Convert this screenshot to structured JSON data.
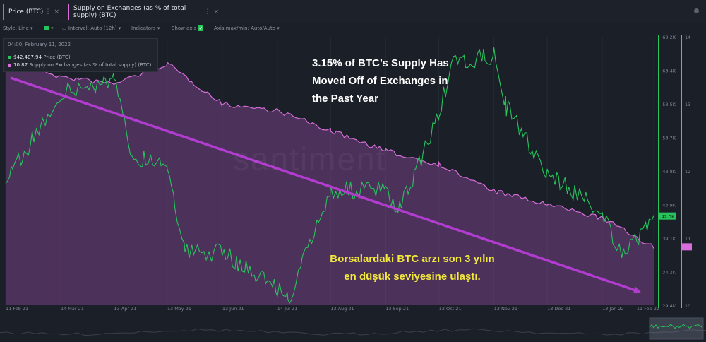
{
  "tabs": [
    {
      "label": "Price (BTC)",
      "color": "#27c45c"
    },
    {
      "label": "Supply on Exchanges (as % of total supply) (BTC)",
      "color": "#d76edb"
    }
  ],
  "toolbar": {
    "style": "Style: Line",
    "interval": "Interval: Auto (12h)",
    "indicators": "Indicators",
    "show_axis": "Show axis",
    "axis_minmax": "Axis max/min: Auto/Auto"
  },
  "tooltip": {
    "date": "04:00, February 11, 2022",
    "price_value": "$42,407.94",
    "price_label": "Price (BTC)",
    "supply_value": "10.87",
    "supply_label": "Supply on Exchanges (as % of total supply) (BTC)"
  },
  "annotations": {
    "headline": "3.15% of BTC’s Supply Has\nMoved Off of Exchanges in\nthe Past Year",
    "turkish": "Borsalardaki BTC arzı son 3 yılın\nen düşük seviyesine ulaştı.",
    "watermark": "santiment"
  },
  "colors": {
    "price": "#27c45c",
    "supply": "#d76edb",
    "arrow": "#b13ccf",
    "background": "#1b1f27"
  },
  "chart_data": {
    "type": "line",
    "x_ticks": [
      "11 Feb 21",
      "14 Mar 21",
      "13 Apr 21",
      "13 May 21",
      "13 Jun 21",
      "14 Jul 21",
      "13 Aug 21",
      "13 Sep 21",
      "13 Oct 21",
      "13 Nov 21",
      "13 Dec 21",
      "13 Jan 22",
      "11 Feb 22"
    ],
    "price_axis": {
      "ticks": [
        "68.2K",
        "63.4K",
        "58.5K",
        "53.7K",
        "48.8K",
        "43.9K",
        "39.1K",
        "34.2K",
        "29.4K"
      ],
      "current": "42.3K",
      "ylim": [
        29400,
        68200
      ]
    },
    "supply_axis": {
      "ticks": [
        "14",
        "13",
        "12",
        "11",
        "10"
      ],
      "current": "10.87",
      "ylim": [
        10,
        14
      ]
    },
    "series": [
      {
        "name": "Price (BTC)",
        "x": [
          "11 Feb 21",
          "14 Mar 21",
          "13 Apr 21",
          "23 Apr 21",
          "13 May 21",
          "23 May 21",
          "13 Jun 21",
          "14 Jul 21",
          "20 Jul 21",
          "13 Aug 21",
          "13 Sep 21",
          "20 Sep 21",
          "13 Oct 21",
          "20 Oct 21",
          "13 Nov 21",
          "20 Nov 21",
          "13 Dec 21",
          "13 Jan 22",
          "24 Jan 22",
          "11 Feb 22"
        ],
        "values": [
          47000,
          60000,
          62000,
          51000,
          50000,
          37000,
          37000,
          32000,
          30000,
          46000,
          46000,
          42500,
          57000,
          64000,
          65500,
          58000,
          48500,
          43000,
          36000,
          42400
        ]
      },
      {
        "name": "Supply on Exchanges (as % of total supply) (BTC)",
        "x": [
          "11 Feb 21",
          "14 Mar 21",
          "13 Apr 21",
          "13 May 21",
          "13 Jun 21",
          "14 Jul 21",
          "13 Aug 21",
          "13 Sep 21",
          "13 Oct 21",
          "13 Nov 21",
          "13 Dec 21",
          "13 Jan 22",
          "11 Feb 22"
        ],
        "values": [
          13.7,
          13.4,
          13.3,
          13.6,
          13.0,
          12.9,
          12.6,
          12.3,
          12.1,
          11.7,
          11.5,
          11.3,
          10.87
        ]
      }
    ]
  }
}
